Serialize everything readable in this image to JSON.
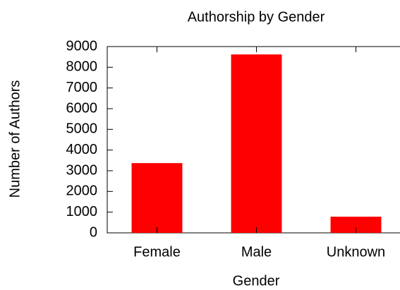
{
  "chart_data": {
    "type": "bar",
    "title": "Authorship by Gender",
    "x_label": "Gender",
    "y_label": "Number of Authors",
    "categories": [
      "Female",
      "Male",
      "Unknown"
    ],
    "values": [
      3370,
      8620,
      780
    ],
    "color": "#ff0000",
    "ylim": [
      0,
      9000
    ],
    "yticks": [
      0,
      1000,
      2000,
      3000,
      4000,
      5000,
      6000,
      7000,
      8000,
      9000
    ],
    "grid": false
  }
}
